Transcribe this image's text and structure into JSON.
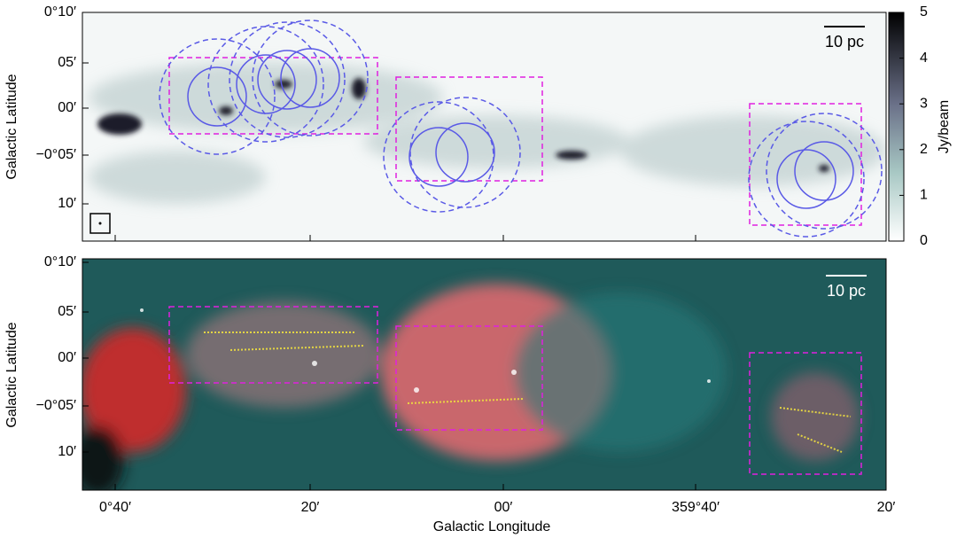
{
  "top_panel": {
    "y_axis_label": "Galactic Latitude",
    "y_ticks": [
      "0°10′",
      "05′",
      "00′",
      "−0°05′",
      "10′"
    ],
    "scale_bar": "10 pc",
    "colorbar": {
      "label": "Jy/beam",
      "ticks": [
        "0",
        "1",
        "2",
        "3",
        "4",
        "5"
      ]
    }
  },
  "bottom_panel": {
    "y_axis_label": "Galactic Latitude",
    "y_ticks": [
      "0°10′",
      "05′",
      "00′",
      "−0°05′",
      "10′"
    ],
    "scale_bar": "10 pc"
  },
  "x_axis": {
    "label": "Galactic Longitude",
    "ticks": [
      "0°40′",
      "20′",
      "00′",
      "359°40′",
      "20′"
    ]
  }
}
